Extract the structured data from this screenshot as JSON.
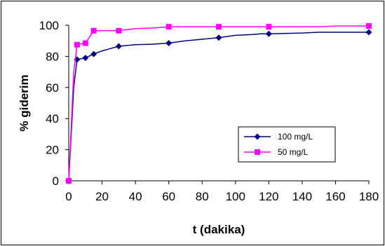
{
  "chart_data": {
    "type": "line",
    "title": "",
    "xlabel": "t (dakika)",
    "ylabel": "% giderim",
    "xlim": [
      0,
      180
    ],
    "ylim": [
      0,
      100
    ],
    "xticks": [
      0,
      20,
      40,
      60,
      80,
      100,
      120,
      140,
      160,
      180
    ],
    "yticks": [
      0,
      20,
      40,
      60,
      80,
      100
    ],
    "grid": false,
    "legend_position": "right",
    "series": [
      {
        "name": "100 mg/L",
        "color": "#000080",
        "marker": "diamond",
        "marker_x": [
          0,
          5,
          10,
          15,
          30,
          60,
          90,
          120,
          180
        ],
        "marker_y": [
          0,
          78,
          79,
          81.5,
          86.5,
          88.5,
          92,
          94.5,
          95.5
        ],
        "curve_x": [
          0,
          3,
          5,
          10,
          15,
          20,
          25,
          30,
          40,
          50,
          60,
          70,
          80,
          90,
          100,
          110,
          115,
          120,
          140,
          150,
          160,
          180
        ],
        "curve_y": [
          0,
          60,
          78,
          79,
          81.5,
          83.5,
          85,
          86.5,
          87.5,
          87.8,
          88.5,
          90,
          91,
          92,
          93.5,
          94,
          94.5,
          94.5,
          95,
          95.5,
          95.5,
          95.5
        ]
      },
      {
        "name": "50 mg/L",
        "color": "#ff00ff",
        "marker": "square",
        "marker_x": [
          0,
          5,
          10,
          15,
          30,
          60,
          90,
          120,
          180
        ],
        "marker_y": [
          0,
          87.5,
          88.5,
          96.5,
          96.5,
          99,
          99,
          99,
          99.5
        ],
        "curve_x": [
          0,
          3,
          5,
          10,
          15,
          20,
          30,
          40,
          45,
          50,
          60,
          90,
          120,
          150,
          160,
          170,
          180
        ],
        "curve_y": [
          0,
          70,
          87.5,
          88.5,
          96.5,
          96.5,
          96.5,
          97.8,
          98,
          98.2,
          99,
          99,
          99,
          99,
          99.5,
          99.5,
          99.5
        ]
      }
    ]
  }
}
